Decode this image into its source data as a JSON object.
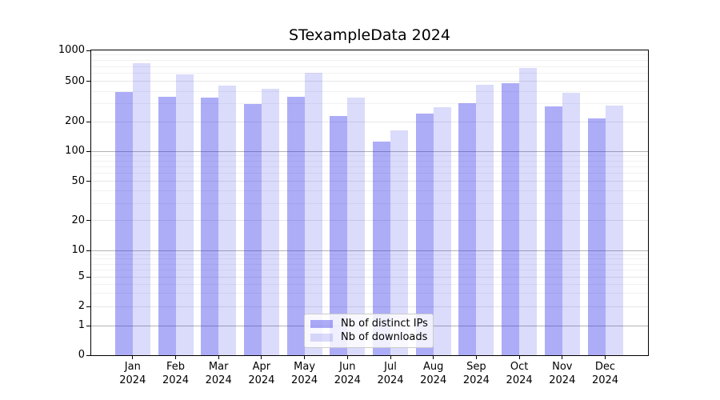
{
  "title": "STexampleData 2024",
  "chart_data": {
    "type": "bar",
    "title": "STexampleData 2024",
    "categories": [
      "Jan",
      "Feb",
      "Mar",
      "Apr",
      "May",
      "Jun",
      "Jul",
      "Aug",
      "Sep",
      "Oct",
      "Nov",
      "Dec"
    ],
    "category_year": "2024",
    "series": [
      {
        "name": "Nb of distinct IPs",
        "color": "rgba(32,32,232,0.37)",
        "values": [
          395,
          355,
          350,
          300,
          355,
          230,
          125,
          240,
          305,
          485,
          285,
          215
        ]
      },
      {
        "name": "Nb of downloads",
        "color": "rgba(32,32,232,0.16)",
        "values": [
          750,
          590,
          455,
          420,
          610,
          350,
          165,
          280,
          465,
          670,
          390,
          290
        ]
      }
    ],
    "xlabel": "",
    "ylabel": "",
    "ylim": [
      0,
      1000
    ],
    "yscale": "log above 1, linear between 0 and 1 (symlog-like)",
    "yticks": [
      0,
      1,
      2,
      5,
      10,
      20,
      50,
      100,
      200,
      500,
      1000
    ],
    "grid": {
      "show": true,
      "decade_values": [
        1,
        10,
        100
      ],
      "labeled_values": [
        2,
        5,
        20,
        50,
        200,
        500
      ],
      "minor_values": [
        3,
        4,
        6,
        7,
        8,
        9,
        30,
        40,
        60,
        70,
        80,
        90,
        300,
        400,
        600,
        700,
        800,
        900
      ]
    },
    "legend": {
      "position": "lower center",
      "items": [
        "Nb of distinct IPs",
        "Nb of downloads"
      ]
    },
    "scale_anchors": {
      "0": 0,
      "1": 0.0969,
      "2": 0.1597,
      "5": 0.2565,
      "10": 0.3437,
      "20": 0.4411,
      "50": 0.5707,
      "100": 0.6688,
      "200": 0.7657,
      "500": 0.8979,
      "1000": 1
    }
  },
  "colors": {
    "background": "#ffffff",
    "spine": "#000000",
    "grid_decade": "#b3b3b3",
    "grid_labeled": "#e6e6e6",
    "grid_minor": "#f1f1f1",
    "text": "#000000",
    "legend_border": "#cccccc"
  }
}
